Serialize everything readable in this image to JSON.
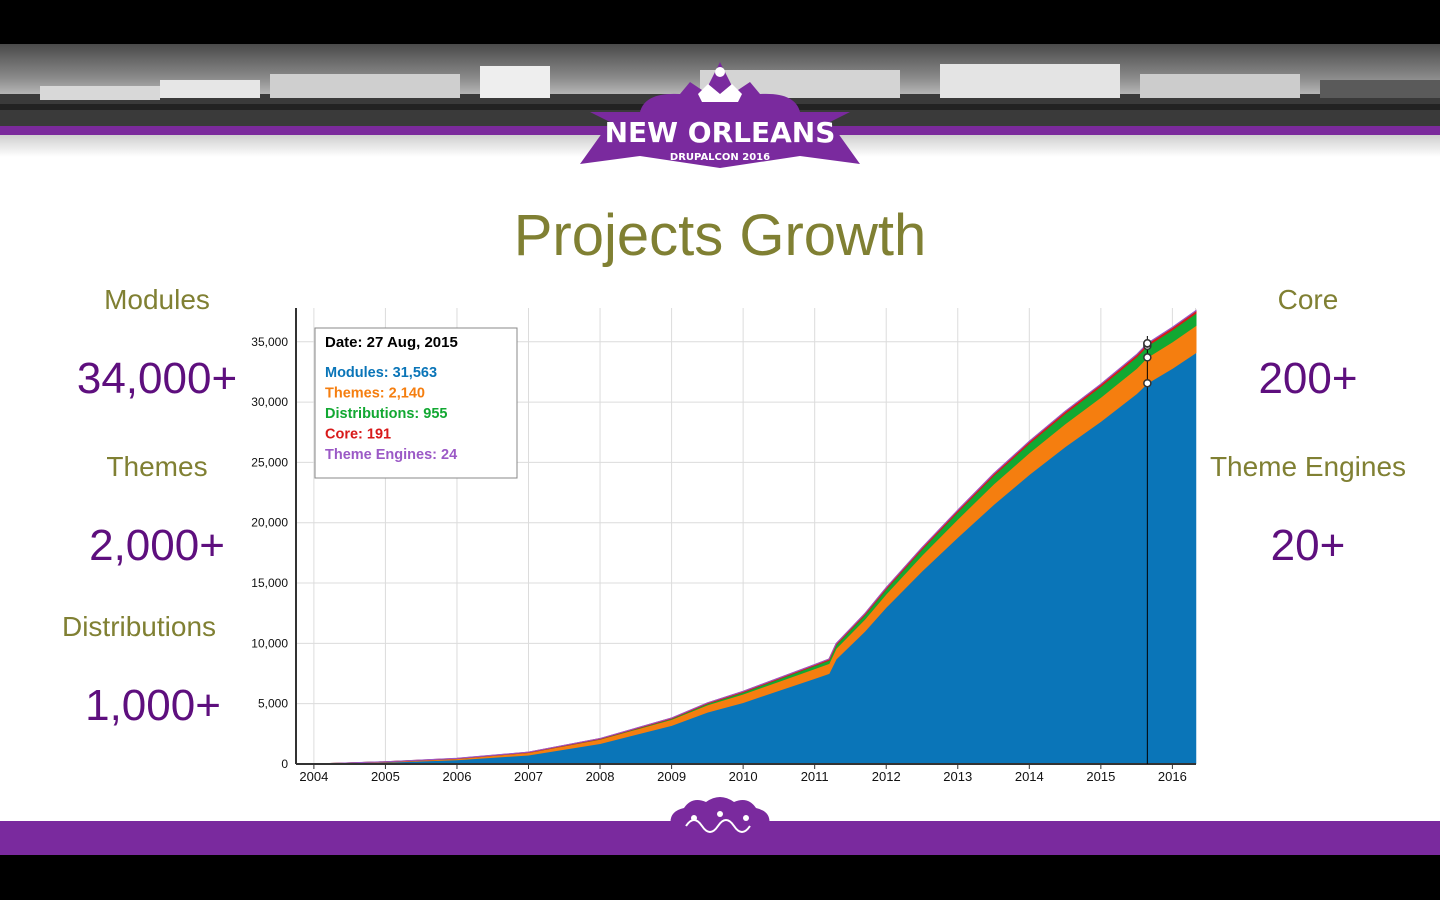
{
  "slide": {
    "title": "Projects Growth",
    "banner_city": "NEW ORLEANS",
    "banner_event": "DRUPALCON 2016"
  },
  "stats_left": [
    {
      "label": "Modules",
      "value": "34,000+"
    },
    {
      "label": "Themes",
      "value": "2,000+"
    },
    {
      "label": "Distributions",
      "value": "1,000+"
    }
  ],
  "stats_right": [
    {
      "label": "Core",
      "value": "200+"
    },
    {
      "label": "Theme Engines",
      "value": "20+"
    }
  ],
  "colors": {
    "purple": "#7a2a9e",
    "olive": "#808033",
    "stat_purple": "#5e0f7e",
    "modules": "#0a75b8",
    "themes": "#f57e0f",
    "distributions": "#12a832",
    "core": "#d81a1a",
    "theme_engines": "#9b59c6"
  },
  "chart_data": {
    "type": "area",
    "stacked": true,
    "x": [
      2004.0,
      2005.0,
      2006.0,
      2007.0,
      2008.0,
      2009.0,
      2009.5,
      2010.0,
      2010.5,
      2011.0,
      2011.2,
      2011.3,
      2011.7,
      2012.0,
      2012.5,
      2013.0,
      2013.5,
      2014.0,
      2014.5,
      2015.0,
      2015.5,
      2015.65,
      2016.0,
      2016.33
    ],
    "series": [
      {
        "name": "Modules",
        "color": "#0a75b8",
        "values": [
          0,
          150,
          350,
          750,
          1700,
          3200,
          4300,
          5100,
          6100,
          7100,
          7500,
          8700,
          11000,
          13000,
          16000,
          18800,
          21500,
          24000,
          26300,
          28400,
          30700,
          31563,
          32800,
          34100
        ]
      },
      {
        "name": "Themes",
        "color": "#f57e0f",
        "values": [
          0,
          30,
          100,
          200,
          350,
          500,
          600,
          700,
          750,
          800,
          830,
          880,
          1000,
          1100,
          1300,
          1500,
          1700,
          1800,
          1900,
          2000,
          2100,
          2140,
          2200,
          2250
        ]
      },
      {
        "name": "Distributions",
        "color": "#12a832",
        "values": [
          0,
          0,
          0,
          0,
          20,
          60,
          100,
          150,
          200,
          250,
          270,
          300,
          350,
          400,
          500,
          600,
          700,
          780,
          850,
          900,
          940,
          955,
          990,
          1020
        ]
      },
      {
        "name": "Core",
        "color": "#d81a1a",
        "values": [
          0,
          10,
          20,
          30,
          40,
          50,
          60,
          70,
          80,
          90,
          95,
          100,
          110,
          120,
          130,
          140,
          150,
          160,
          170,
          180,
          188,
          191,
          195,
          200
        ]
      },
      {
        "name": "Theme Engines",
        "color": "#9b59c6",
        "values": [
          0,
          1,
          2,
          4,
          6,
          8,
          9,
          10,
          11,
          12,
          13,
          14,
          15,
          16,
          17,
          18,
          19,
          20,
          21,
          22,
          23,
          24,
          24,
          25
        ]
      }
    ],
    "xticks": [
      "2004",
      "2005",
      "2006",
      "2007",
      "2008",
      "2009",
      "2010",
      "2011",
      "2012",
      "2013",
      "2014",
      "2015",
      "2016"
    ],
    "yticks": [
      "0",
      "5,000",
      "10,000",
      "15,000",
      "20,000",
      "25,000",
      "30,000",
      "35,000"
    ],
    "xlim": [
      2003.75,
      2016.33
    ],
    "ylim": [
      0,
      37800
    ],
    "grid": true,
    "cursor": {
      "x": 2015.65,
      "date_label": "Date: 27 Aug, 2015",
      "entries": [
        {
          "text": "Modules: 31,563",
          "color": "#0a75b8"
        },
        {
          "text": "Themes: 2,140",
          "color": "#f57e0f"
        },
        {
          "text": "Distributions: 955",
          "color": "#12a832"
        },
        {
          "text": "Core: 191",
          "color": "#d81a1a"
        },
        {
          "text": "Theme Engines: 24",
          "color": "#9b59c6"
        }
      ]
    }
  }
}
